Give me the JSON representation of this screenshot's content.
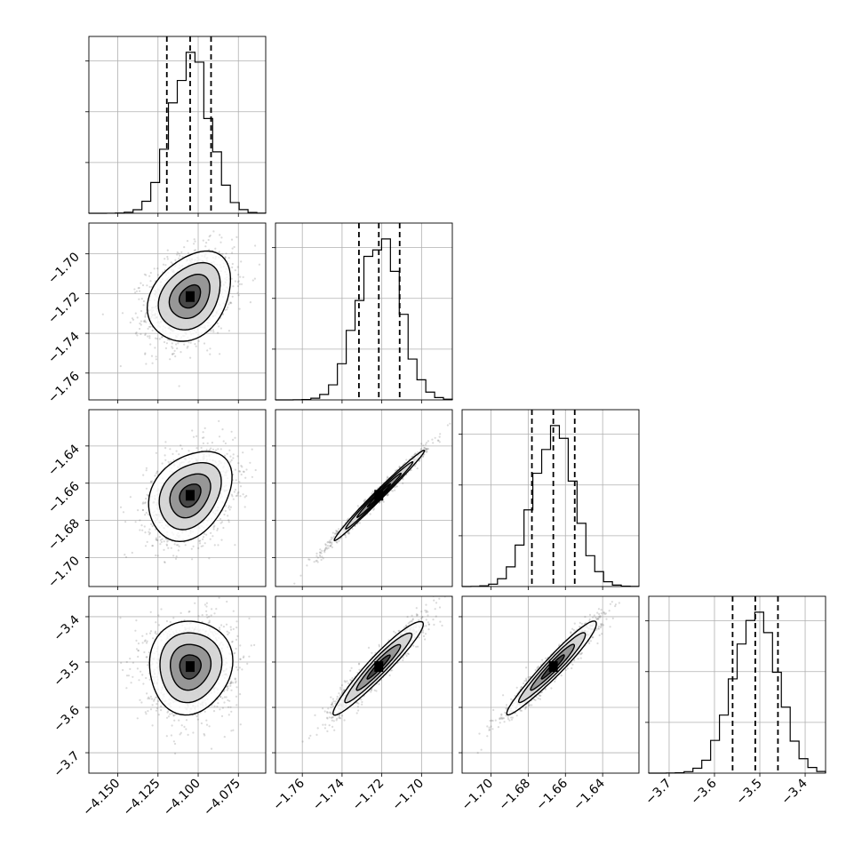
{
  "chart_data": {
    "type": "corner",
    "grid": true,
    "n_params": 4,
    "params": [
      {
        "range": [
          -4.168,
          -4.058
        ],
        "ticks": [
          -4.15,
          -4.125,
          -4.1,
          -4.075
        ],
        "tick_labels": [
          "−4.150",
          "−4.125",
          "−4.100",
          "−4.075"
        ],
        "center": -4.105,
        "sigma": 0.012,
        "quantiles": [
          -4.1195,
          -4.105,
          -4.092
        ]
      },
      {
        "range": [
          -1.7735,
          -1.6845
        ],
        "ticks": [
          -1.76,
          -1.74,
          -1.72,
          -1.7
        ],
        "tick_labels": [
          "−1.76",
          "−1.74",
          "−1.72",
          "−1.70"
        ],
        "center": -1.7215,
        "sigma": 0.0105,
        "quantiles": [
          -1.7315,
          -1.7215,
          -1.711
        ]
      },
      {
        "range": [
          -1.7155,
          -1.6205
        ],
        "ticks": [
          -1.7,
          -1.68,
          -1.66,
          -1.64
        ],
        "tick_labels": [
          "−1.70",
          "−1.68",
          "−1.66",
          "−1.64"
        ],
        "center": -1.6665,
        "sigma": 0.0112,
        "quantiles": [
          -1.678,
          -1.6665,
          -1.655
        ]
      },
      {
        "range": [
          -3.745,
          -3.355
        ],
        "ticks": [
          -3.7,
          -3.6,
          -3.5,
          -3.4
        ],
        "tick_labels": [
          "−3.7",
          "−3.6",
          "−3.5",
          "−3.4"
        ],
        "center": -3.51,
        "sigma": 0.048,
        "quantiles": [
          -3.56,
          -3.51,
          -3.46
        ]
      }
    ],
    "correlations": [
      {
        "i": 1,
        "j": 0,
        "rho": 0.3
      },
      {
        "i": 2,
        "j": 0,
        "rho": 0.3
      },
      {
        "i": 2,
        "j": 1,
        "rho": 0.99
      },
      {
        "i": 3,
        "j": 0,
        "rho": 0.05
      },
      {
        "i": 3,
        "j": 1,
        "rho": 0.95
      },
      {
        "i": 3,
        "j": 2,
        "rho": 0.96
      }
    ],
    "hist_bins": 20,
    "contour_levels": 4
  },
  "colors": {
    "line": "#000000",
    "grid": "#b0b0b0",
    "points": "#555555",
    "background": "#ffffff"
  }
}
